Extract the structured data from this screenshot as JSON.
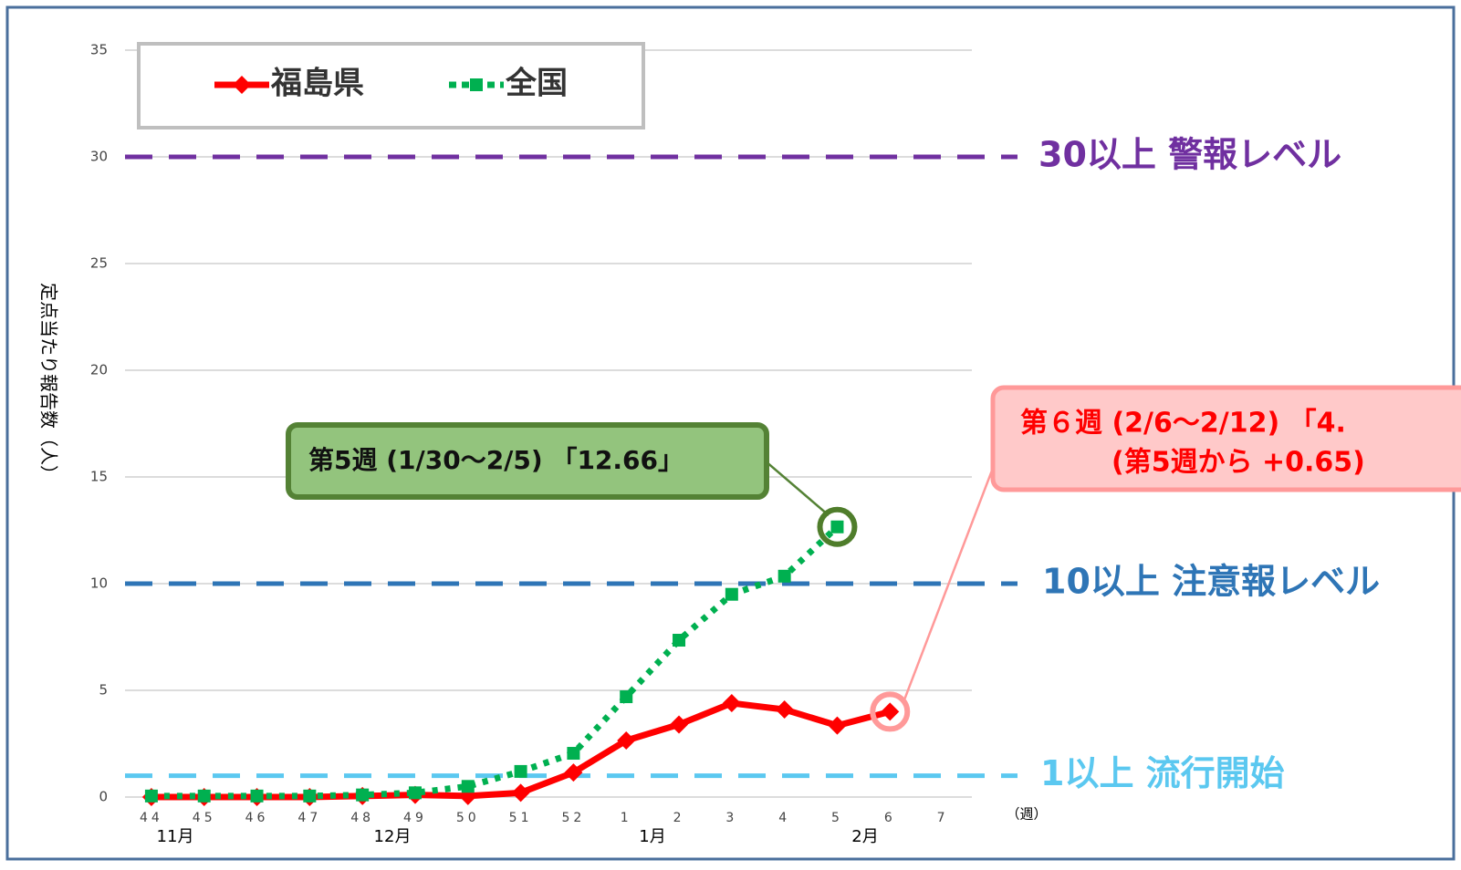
{
  "chart_data": {
    "type": "line",
    "y_label": "定点当たり報告数（人）",
    "x_unit": "（週）",
    "categories": [
      "44",
      "45",
      "46",
      "47",
      "48",
      "49",
      "50",
      "51",
      "52",
      "1",
      "2",
      "3",
      "4",
      "5",
      "6",
      "7"
    ],
    "month_labels": [
      "11月",
      "12月",
      "1月",
      "2月"
    ],
    "series": [
      {
        "name": "福島県",
        "color": "#ff0000",
        "values": [
          0,
          0,
          0,
          0,
          0.05,
          0.1,
          0.05,
          0.2,
          1.15,
          2.65,
          3.4,
          4.4,
          4.1,
          3.35,
          4.0,
          null
        ]
      },
      {
        "name": "全国",
        "color": "#00b050",
        "values": [
          0.05,
          0.05,
          0.05,
          0.05,
          0.1,
          0.2,
          0.5,
          1.2,
          2.05,
          4.7,
          7.35,
          9.5,
          10.35,
          12.66,
          null,
          null
        ]
      }
    ],
    "ylim": [
      0,
      35
    ],
    "yticks": [
      0,
      5,
      10,
      15,
      20,
      25,
      30,
      35
    ],
    "grid": true,
    "reference_lines": [
      {
        "value": 30,
        "label": "30以上 警報レベル",
        "color": "#7030a0"
      },
      {
        "value": 10,
        "label": "10以上 注意報レベル",
        "color": "#2e75b6"
      },
      {
        "value": 1,
        "label": "1以上 流行開始",
        "color": "#5bc8f0"
      }
    ],
    "annotations": [
      {
        "lines": [
          "第5週 (1/30～2/5) 「12.66」"
        ]
      },
      {
        "lines": [
          "第６週 (2/6～2/12) 「4.",
          "(第5週から +0.65)"
        ]
      }
    ]
  }
}
